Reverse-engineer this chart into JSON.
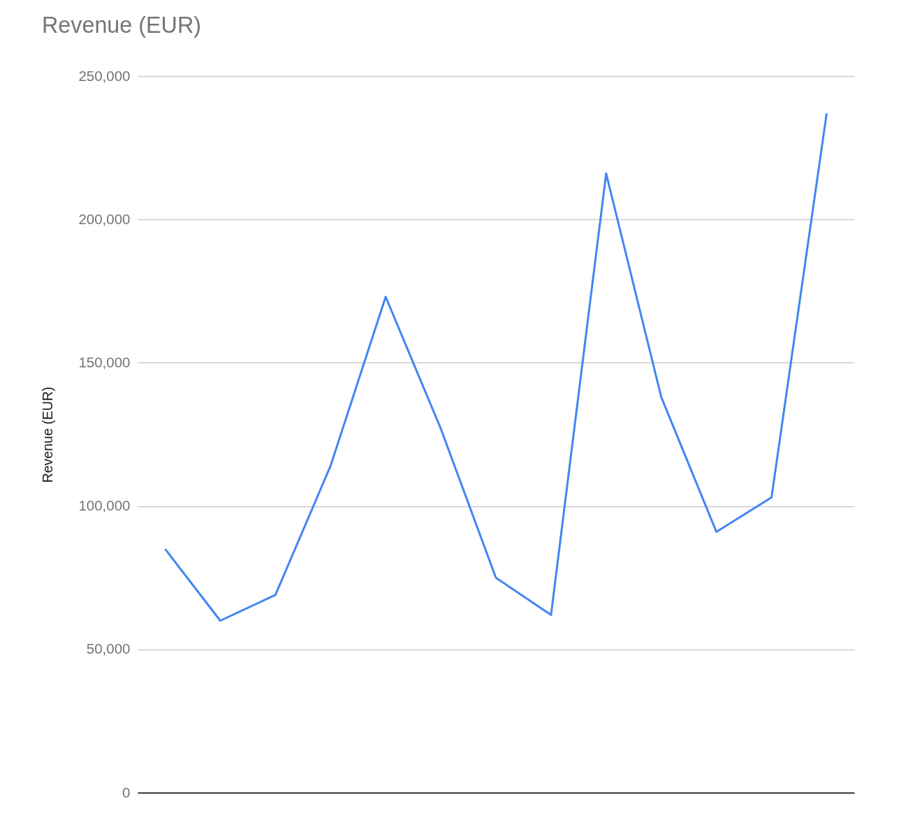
{
  "chart_data": {
    "type": "line",
    "title": "Revenue (EUR)",
    "ylabel": "Revenue (EUR)",
    "categories": [
      null,
      null,
      null,
      null,
      null,
      null,
      null,
      null,
      null,
      null,
      null,
      null,
      null
    ],
    "series": [
      {
        "color": "#4285f4",
        "values": [
          85000,
          60000,
          69000,
          114000,
          173000,
          127000,
          75000,
          62000,
          216000,
          138000,
          91000,
          103000,
          237000
        ]
      }
    ],
    "ylim": [
      0,
      250000
    ],
    "yticks": [
      0,
      {
        "value": 50000,
        "label": "50,000"
      },
      {
        "value": 100000,
        "label": "100,000"
      },
      {
        "value": 150000,
        "label": "150,000"
      },
      {
        "value": 200000,
        "label": "200,000"
      },
      {
        "value": 250000,
        "label": "250,000"
      }
    ],
    "grid": "y",
    "tick_labels": "y"
  }
}
